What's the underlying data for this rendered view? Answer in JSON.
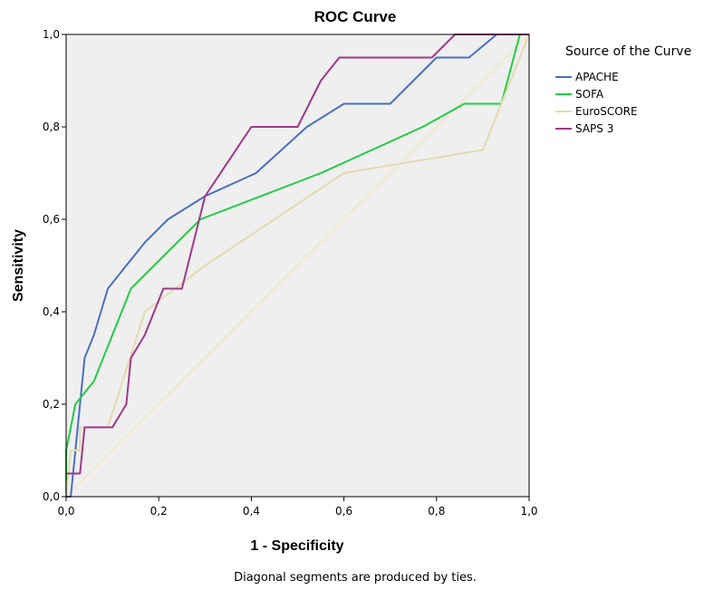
{
  "chart_data": {
    "type": "line",
    "title": "ROC Curve",
    "xlabel": "1 - Specificity",
    "ylabel": "Sensitivity",
    "xlim": [
      0,
      1
    ],
    "ylim": [
      0,
      1
    ],
    "x_ticks": [
      "0,0",
      "0,2",
      "0,4",
      "0,6",
      "0,8",
      "1,0"
    ],
    "y_ticks": [
      "0,0",
      "0,2",
      "0,4",
      "0,6",
      "0,8",
      "1,0"
    ],
    "grid": false,
    "background": "#efefef",
    "legend": {
      "title": "Source of the Curve",
      "placement": "right"
    },
    "footnote": "Diagonal segments are produced by ties.",
    "series": [
      {
        "name": "APACHE",
        "color": "#4a6fc4",
        "points": [
          [
            0,
            0
          ],
          [
            0.01,
            0
          ],
          [
            0.02,
            0.1
          ],
          [
            0.04,
            0.3
          ],
          [
            0.06,
            0.35
          ],
          [
            0.09,
            0.45
          ],
          [
            0.13,
            0.5
          ],
          [
            0.17,
            0.55
          ],
          [
            0.22,
            0.6
          ],
          [
            0.3,
            0.65
          ],
          [
            0.41,
            0.7
          ],
          [
            0.52,
            0.8
          ],
          [
            0.6,
            0.85
          ],
          [
            0.7,
            0.85
          ],
          [
            0.8,
            0.95
          ],
          [
            0.87,
            0.95
          ],
          [
            0.93,
            1
          ],
          [
            1,
            1
          ]
        ]
      },
      {
        "name": "SOFA",
        "color": "#22cc44",
        "points": [
          [
            0,
            0
          ],
          [
            0,
            0.1
          ],
          [
            0.02,
            0.2
          ],
          [
            0.06,
            0.25
          ],
          [
            0.14,
            0.45
          ],
          [
            0.29,
            0.6
          ],
          [
            0.55,
            0.7
          ],
          [
            0.77,
            0.8
          ],
          [
            0.86,
            0.85
          ],
          [
            0.94,
            0.85
          ],
          [
            0.98,
            1
          ],
          [
            1,
            1
          ]
        ]
      },
      {
        "name": "EuroSCORE",
        "color": "#e3dbb0",
        "points": [
          [
            0,
            0
          ],
          [
            0.01,
            0.1
          ],
          [
            0.03,
            0.1
          ],
          [
            0.03,
            0.15
          ],
          [
            0.09,
            0.15
          ],
          [
            0.17,
            0.4
          ],
          [
            0.3,
            0.5
          ],
          [
            0.6,
            0.7
          ],
          [
            0.9,
            0.75
          ],
          [
            1,
            1
          ]
        ]
      },
      {
        "name": "SAPS 3",
        "color": "#a0378a",
        "points": [
          [
            0,
            0.05
          ],
          [
            0.03,
            0.05
          ],
          [
            0.04,
            0.15
          ],
          [
            0.1,
            0.15
          ],
          [
            0.13,
            0.2
          ],
          [
            0.14,
            0.3
          ],
          [
            0.17,
            0.35
          ],
          [
            0.21,
            0.45
          ],
          [
            0.25,
            0.45
          ],
          [
            0.3,
            0.65
          ],
          [
            0.4,
            0.8
          ],
          [
            0.5,
            0.8
          ],
          [
            0.55,
            0.9
          ],
          [
            0.59,
            0.95
          ],
          [
            0.79,
            0.95
          ],
          [
            0.84,
            1
          ],
          [
            1,
            1
          ]
        ]
      }
    ],
    "reference_line": {
      "color": "#f0e6c8",
      "points": [
        [
          0,
          0
        ],
        [
          1,
          1
        ]
      ]
    }
  }
}
